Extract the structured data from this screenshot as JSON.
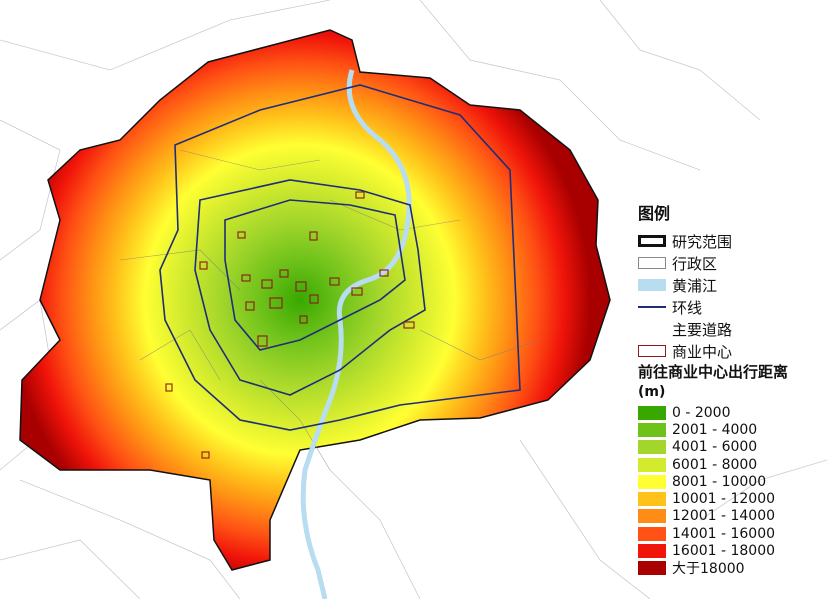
{
  "legend": {
    "title": "图例",
    "items": [
      {
        "label": "研究范围",
        "type": "box-thick",
        "color": "#111111"
      },
      {
        "label": "行政区",
        "type": "box-thin",
        "color": "#888888"
      },
      {
        "label": "黄浦江",
        "type": "fill",
        "color": "#b8dcf0"
      },
      {
        "label": "环线",
        "type": "line",
        "color": "#1f2d7a"
      },
      {
        "label": "主要道路",
        "type": "none",
        "color": "#cccccc"
      },
      {
        "label": "商业中心",
        "type": "box-red",
        "color": "#8b1a1a"
      }
    ],
    "distance_title": "前往商业中心出行距离",
    "distance_unit": "(m)",
    "classes": [
      {
        "label": "0 - 2000",
        "color": "#38a800"
      },
      {
        "label": "2001 - 4000",
        "color": "#6ec21a"
      },
      {
        "label": "4001 - 6000",
        "color": "#a3d62b"
      },
      {
        "label": "6001 - 8000",
        "color": "#d3eb2e"
      },
      {
        "label": "8001 - 10000",
        "color": "#ffff33"
      },
      {
        "label": "10001 - 12000",
        "color": "#ffc21a"
      },
      {
        "label": "12001 - 14000",
        "color": "#ff8c14"
      },
      {
        "label": "14001 - 16000",
        "color": "#ff5214"
      },
      {
        "label": "16001 - 18000",
        "color": "#f0140a"
      },
      {
        "label": "大于18000",
        "color": "#a80000"
      }
    ]
  }
}
